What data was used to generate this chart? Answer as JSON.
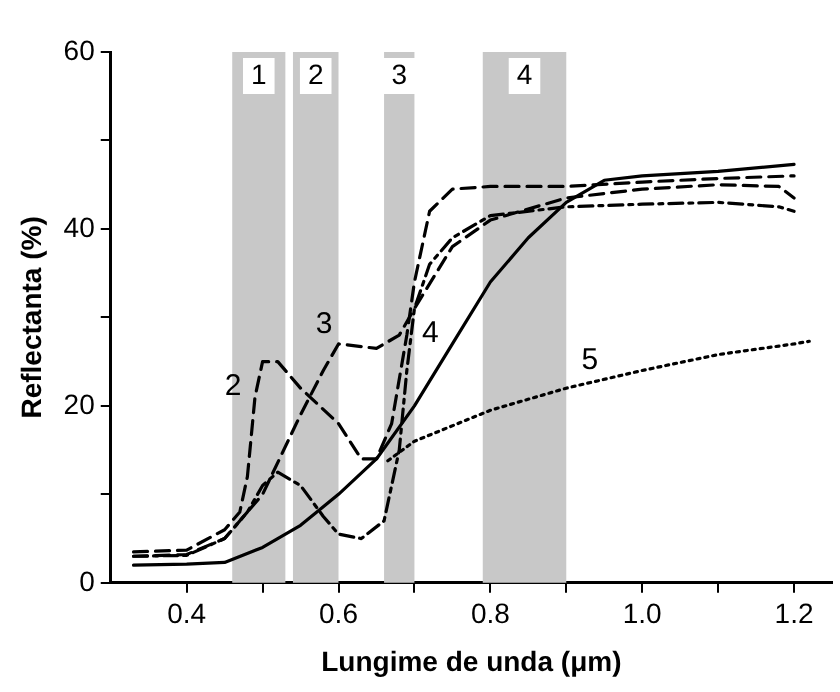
{
  "chart_data": {
    "type": "line",
    "xlabel": "Lungime de unda (μm)",
    "ylabel": "Reflectanta (%)",
    "xlim": [
      0.3,
      1.25
    ],
    "ylim": [
      0,
      60
    ],
    "xticks": [
      0.4,
      {
        "value": 0.5,
        "label": null
      },
      0.6,
      {
        "value": 0.7,
        "label": null
      },
      0.8,
      {
        "value": 0.9,
        "label": null
      },
      {
        "value": 1.0,
        "label": "1.0"
      },
      {
        "value": 1.1,
        "label": null
      },
      1.2
    ],
    "yticks": [
      0,
      {
        "value": 10,
        "label": null
      },
      20,
      {
        "value": 30,
        "label": null
      },
      40,
      {
        "value": 50,
        "label": null
      },
      60
    ],
    "grid": false,
    "legend": false,
    "marker": "none",
    "bands": [
      {
        "axis": "x",
        "from": 0.46,
        "to": 0.53,
        "label": "1",
        "color": "#c8c8c8"
      },
      {
        "axis": "x",
        "from": 0.54,
        "to": 0.6,
        "label": "2",
        "color": "#c8c8c8"
      },
      {
        "axis": "x",
        "from": 0.66,
        "to": 0.7,
        "label": "3",
        "color": "#c8c8c8"
      },
      {
        "axis": "x",
        "from": 0.79,
        "to": 0.9,
        "label": "4",
        "color": "#c8c8c8"
      }
    ],
    "series": [
      {
        "color": "#000000",
        "line_style": "dashed",
        "x": [
          0.33,
          0.4,
          0.45,
          0.47,
          0.48,
          0.49,
          0.5,
          0.52,
          0.55,
          0.6,
          0.63,
          0.65,
          0.67,
          0.69,
          0.7,
          0.72,
          0.75,
          0.8,
          0.9,
          1.0,
          1.1,
          1.2
        ],
        "values": [
          3.5,
          3.7,
          6,
          8,
          12,
          21,
          25,
          25,
          22,
          18,
          14,
          14,
          18,
          28,
          34,
          42,
          44.5,
          44.8,
          44.8,
          45.3,
          45.7,
          46
        ]
      },
      {
        "color": "#000000",
        "line_style": "dashed",
        "x": [
          0.33,
          0.4,
          0.45,
          0.5,
          0.55,
          0.58,
          0.6,
          0.65,
          0.68,
          0.7,
          0.75,
          0.8,
          0.9,
          1.0,
          1.1,
          1.18,
          1.2
        ],
        "values": [
          3,
          3.2,
          5,
          10,
          19,
          24,
          27,
          26.5,
          28,
          31,
          38,
          41,
          43.5,
          44.5,
          45,
          44.8,
          43.5
        ]
      },
      {
        "color": "#000000",
        "line_style": "solid",
        "x": [
          0.33,
          0.4,
          0.45,
          0.5,
          0.55,
          0.6,
          0.65,
          0.7,
          0.75,
          0.8,
          0.85,
          0.9,
          0.95,
          1.0,
          1.1,
          1.2
        ],
        "values": [
          2,
          2.1,
          2.3,
          4,
          6.5,
          10,
          14,
          20,
          27,
          34,
          39,
          43,
          45.5,
          46,
          46.5,
          47.3
        ]
      },
      {
        "color": "#000000",
        "line_style": "dotted",
        "x": [
          0.665,
          0.7,
          0.8,
          0.9,
          1.0,
          1.1,
          1.2,
          1.22
        ],
        "values": [
          13.8,
          16,
          19.5,
          22,
          24,
          25.8,
          27,
          27.3
        ]
      },
      {
        "color": "#000000",
        "line_style": "dashdot",
        "x": [
          0.33,
          0.4,
          0.45,
          0.48,
          0.5,
          0.52,
          0.55,
          0.58,
          0.6,
          0.63,
          0.66,
          0.68,
          0.69,
          0.7,
          0.72,
          0.75,
          0.8,
          0.9,
          1.0,
          1.1,
          1.18,
          1.2
        ],
        "values": [
          3,
          3.1,
          5,
          8,
          11,
          12.5,
          11,
          7.5,
          5.5,
          5,
          7,
          15,
          24,
          31,
          36,
          39,
          41.5,
          42.5,
          42.8,
          43,
          42.5,
          42
        ]
      }
    ],
    "annotations": [
      {
        "text": "2",
        "x": 0.48,
        "y": 20
      },
      {
        "text": "3",
        "x": 0.6,
        "y": 27
      },
      {
        "text": "4",
        "x": 0.74,
        "y": 26
      },
      {
        "text": "5",
        "x": 0.95,
        "y": 23
      }
    ]
  }
}
